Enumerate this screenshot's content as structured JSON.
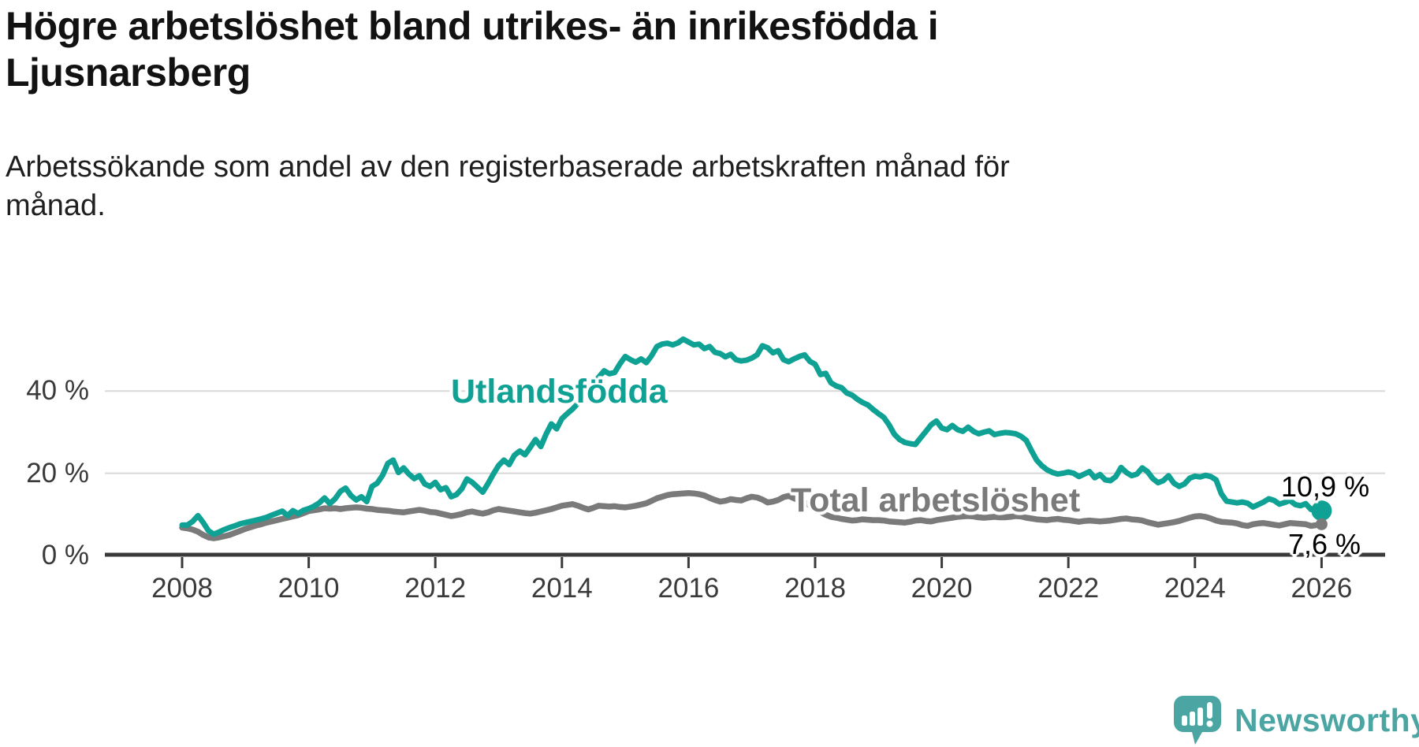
{
  "header": {
    "title": "Högre arbetslöshet bland utrikes- än inrikesfödda i Ljusnarsberg",
    "subtitle": "Arbetssökande som andel av den registerbaserade arbetskraften månad för månad."
  },
  "chart_data": {
    "type": "line",
    "title": "Högre arbetslöshet bland utrikes- än inrikesfödda i Ljusnarsberg",
    "xlabel": "",
    "ylabel": "Arbetssökande som andel av den registerbaserade arbetskraften",
    "grid": "horizontal",
    "legend_position": "inline-labels",
    "x_axis": {
      "ticks": [
        2008,
        2010,
        2012,
        2014,
        2016,
        2018,
        2020,
        2022,
        2024,
        2026
      ],
      "range": [
        2008,
        2026.2
      ]
    },
    "y_axis": {
      "tick_values": [
        0,
        20,
        40
      ],
      "tick_labels": [
        "0 %",
        "20 %",
        "40 %"
      ],
      "range": [
        0,
        55
      ],
      "unit": "%"
    },
    "colors": {
      "utlandsfodda": "#0fa294",
      "total": "#7a7a7a",
      "gridline": "#d8d8d8",
      "axis": "#3a3a3a",
      "value_label": "#000000"
    },
    "series": [
      {
        "name": "Utlandsfödda",
        "color": "#0fa294",
        "end_label": "10,9 %",
        "end_value": 10.9,
        "start_year": 2008,
        "interval": "monthly",
        "values": [
          7.4,
          7.4,
          8.3,
          9.7,
          8.0,
          6.0,
          5.2,
          5.7,
          6.3,
          6.8,
          7.2,
          7.7,
          8.0,
          8.3,
          8.6,
          8.9,
          9.3,
          9.8,
          10.3,
          10.8,
          9.7,
          10.9,
          10.2,
          11.0,
          11.4,
          12.0,
          12.8,
          14.0,
          12.6,
          13.8,
          15.6,
          16.4,
          14.6,
          13.5,
          14.3,
          13.1,
          16.8,
          17.6,
          19.5,
          22.4,
          23.2,
          20.2,
          21.3,
          19.8,
          18.7,
          19.4,
          17.4,
          16.8,
          17.8,
          16.0,
          16.5,
          14.3,
          14.8,
          16.2,
          18.6,
          17.8,
          16.6,
          15.4,
          17.5,
          19.8,
          21.9,
          23.2,
          22.1,
          24.4,
          25.4,
          24.5,
          26.3,
          28.2,
          26.5,
          29.5,
          32.0,
          30.8,
          33.3,
          34.5,
          35.6,
          37.0,
          38.6,
          40.3,
          42.0,
          43.4,
          44.9,
          44.2,
          44.5,
          46.6,
          48.4,
          47.6,
          47.0,
          47.8,
          46.9,
          48.6,
          50.8,
          51.4,
          51.6,
          51.2,
          51.7,
          52.6,
          51.9,
          51.2,
          51.4,
          50.3,
          50.8,
          49.4,
          49.1,
          48.3,
          48.9,
          47.6,
          47.3,
          47.5,
          48.0,
          48.8,
          51.0,
          50.5,
          49.3,
          49.8,
          47.6,
          47.1,
          47.8,
          48.4,
          48.8,
          47.2,
          46.5,
          44.0,
          44.3,
          42.0,
          41.2,
          40.8,
          39.5,
          39.0,
          38.0,
          37.2,
          36.6,
          35.5,
          34.5,
          33.6,
          31.8,
          29.5,
          28.2,
          27.5,
          27.2,
          27.0,
          28.6,
          30.2,
          31.8,
          32.7,
          31.0,
          30.6,
          31.6,
          30.6,
          30.2,
          31.2,
          30.2,
          29.6,
          30.0,
          30.3,
          29.4,
          29.7,
          29.9,
          29.8,
          29.6,
          29.0,
          28.0,
          25.5,
          23.2,
          21.8,
          20.8,
          20.2,
          19.8,
          20.0,
          20.3,
          20.0,
          19.2,
          19.8,
          20.4,
          18.9,
          19.7,
          18.4,
          18.2,
          19.2,
          21.4,
          20.2,
          19.4,
          19.8,
          21.3,
          20.4,
          18.7,
          17.7,
          18.2,
          19.4,
          17.6,
          16.8,
          17.4,
          18.8,
          19.3,
          19.1,
          19.5,
          19.2,
          18.4,
          15.0,
          13.2,
          13.0,
          12.8,
          13.0,
          12.7,
          11.8,
          12.4,
          13.0,
          13.8,
          13.4,
          12.5,
          12.9,
          13.4,
          12.4,
          12.1,
          12.6,
          11.2,
          11.6,
          10.9
        ]
      },
      {
        "name": "Total arbetslöshet",
        "color": "#7a7a7a",
        "end_label": "7,6 %",
        "end_value": 7.6,
        "start_year": 2008,
        "interval": "monthly",
        "values": [
          6.8,
          6.6,
          6.3,
          5.8,
          5.0,
          4.4,
          4.2,
          4.4,
          4.7,
          5.0,
          5.5,
          6.0,
          6.5,
          6.9,
          7.3,
          7.6,
          8.0,
          8.3,
          8.6,
          8.9,
          9.2,
          9.5,
          9.8,
          10.3,
          10.8,
          11.0,
          11.2,
          11.5,
          11.4,
          11.5,
          11.3,
          11.5,
          11.6,
          11.7,
          11.6,
          11.4,
          11.3,
          11.1,
          11.0,
          10.9,
          10.7,
          10.6,
          10.5,
          10.7,
          10.9,
          11.1,
          10.9,
          10.6,
          10.5,
          10.2,
          9.9,
          9.6,
          9.8,
          10.1,
          10.5,
          10.7,
          10.4,
          10.2,
          10.5,
          11.0,
          11.3,
          11.1,
          10.9,
          10.7,
          10.5,
          10.3,
          10.2,
          10.4,
          10.7,
          11.0,
          11.3,
          11.7,
          12.1,
          12.3,
          12.5,
          12.1,
          11.6,
          11.2,
          11.6,
          12.1,
          12.0,
          11.9,
          12.0,
          11.8,
          11.7,
          11.9,
          12.1,
          12.4,
          12.7,
          13.3,
          13.9,
          14.3,
          14.7,
          14.9,
          15.0,
          15.1,
          15.2,
          15.1,
          14.9,
          14.6,
          14.0,
          13.5,
          13.1,
          13.3,
          13.7,
          13.5,
          13.4,
          13.9,
          14.3,
          14.1,
          13.6,
          12.9,
          13.1,
          13.5,
          14.2,
          14.5,
          13.9,
          13.4,
          12.9,
          12.2,
          11.4,
          10.6,
          9.9,
          9.4,
          9.2,
          8.9,
          8.7,
          8.5,
          8.6,
          8.8,
          8.7,
          8.6,
          8.6,
          8.5,
          8.3,
          8.2,
          8.1,
          8.0,
          8.2,
          8.5,
          8.6,
          8.4,
          8.3,
          8.6,
          8.8,
          9.0,
          9.2,
          9.4,
          9.5,
          9.6,
          9.5,
          9.3,
          9.2,
          9.3,
          9.4,
          9.3,
          9.3,
          9.4,
          9.6,
          9.5,
          9.2,
          9.0,
          8.8,
          8.7,
          8.6,
          8.8,
          8.9,
          8.7,
          8.6,
          8.4,
          8.2,
          8.4,
          8.5,
          8.4,
          8.3,
          8.4,
          8.5,
          8.7,
          8.9,
          9.0,
          8.8,
          8.7,
          8.5,
          8.1,
          7.8,
          7.5,
          7.7,
          7.9,
          8.1,
          8.4,
          8.8,
          9.2,
          9.5,
          9.6,
          9.4,
          9.0,
          8.5,
          8.2,
          8.1,
          8.0,
          7.8,
          7.4,
          7.2,
          7.6,
          7.8,
          7.9,
          7.7,
          7.5,
          7.3,
          7.6,
          7.9,
          7.8,
          7.7,
          7.6,
          7.2,
          7.4,
          7.6
        ]
      }
    ]
  },
  "footer": {
    "brand": "Newsworthy",
    "brand_color": "#4ba6a3",
    "logo_icon": "bar-chart-speech-bubble"
  }
}
